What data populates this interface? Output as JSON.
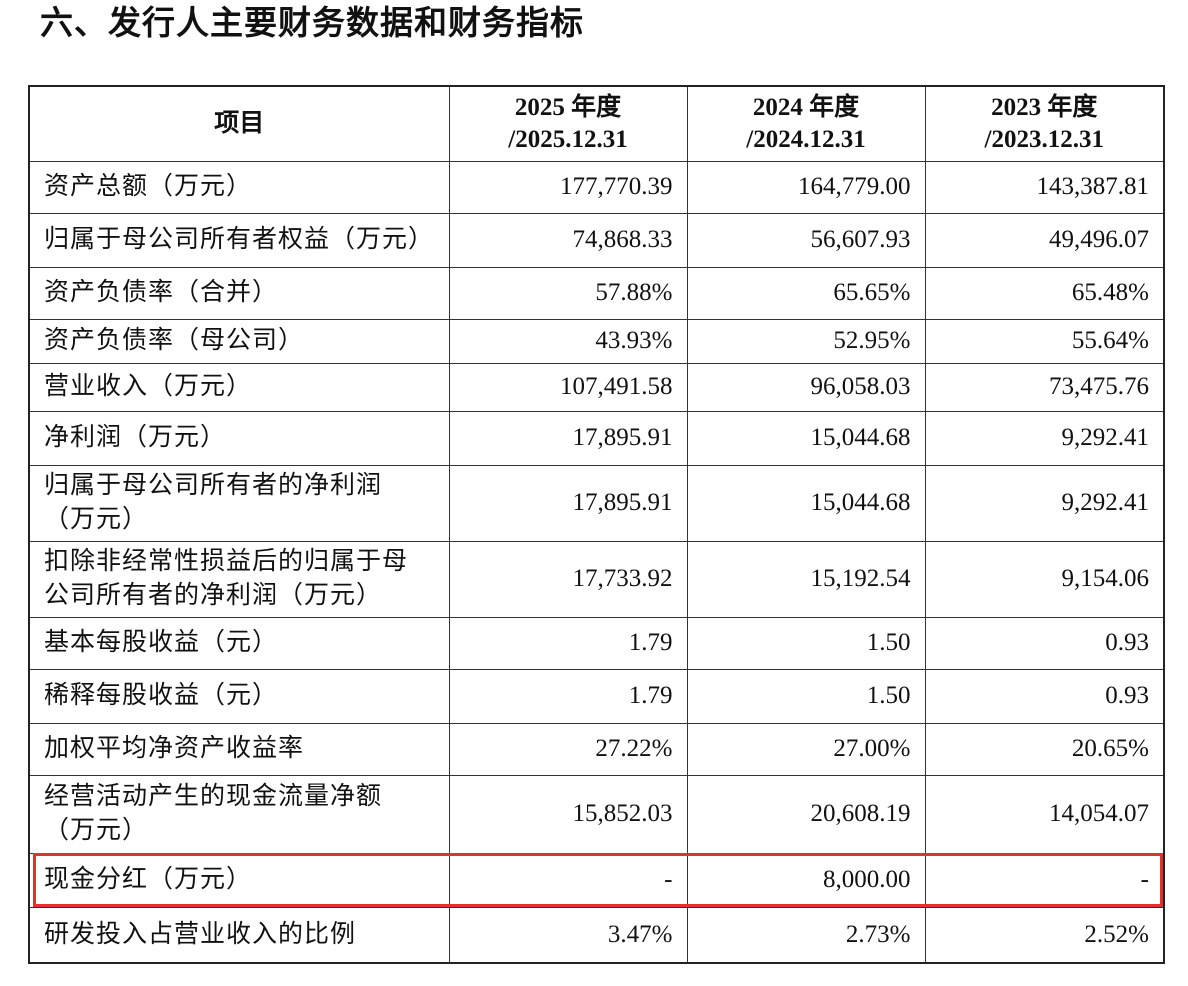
{
  "title": "六、发行人主要财务数据和财务指标",
  "table": {
    "header": [
      [
        "项目"
      ],
      [
        "2025 年度",
        "/2025.12.31"
      ],
      [
        "2024 年度",
        "/2024.12.31"
      ],
      [
        "2023 年度",
        "/2023.12.31"
      ]
    ],
    "rows": [
      [
        [
          "资产总额（万元）"
        ],
        "177,770.39",
        "164,779.00",
        "143,387.81"
      ],
      [
        [
          "归属于母公司所有者权益（万元）"
        ],
        "74,868.33",
        "56,607.93",
        "49,496.07"
      ],
      [
        [
          "资产负债率（合并）"
        ],
        "57.88%",
        "65.65%",
        "65.48%"
      ],
      [
        [
          "资产负债率（母公司）"
        ],
        "43.93%",
        "52.95%",
        "55.64%"
      ],
      [
        [
          "营业收入（万元）"
        ],
        "107,491.58",
        "96,058.03",
        "73,475.76"
      ],
      [
        [
          "净利润（万元）"
        ],
        "17,895.91",
        "15,044.68",
        "9,292.41"
      ],
      [
        [
          "归属于母公司所有者的净利润",
          "（万元）"
        ],
        "17,895.91",
        "15,044.68",
        "9,292.41"
      ],
      [
        [
          "扣除非经常性损益后的归属于母",
          "公司所有者的净利润（万元）"
        ],
        "17,733.92",
        "15,192.54",
        "9,154.06"
      ],
      [
        [
          "基本每股收益（元）"
        ],
        "1.79",
        "1.50",
        "0.93"
      ],
      [
        [
          "稀释每股收益（元）"
        ],
        "1.79",
        "1.50",
        "0.93"
      ],
      [
        [
          "加权平均净资产收益率"
        ],
        "27.22%",
        "27.00%",
        "20.65%"
      ],
      [
        [
          "经营活动产生的现金流量净额",
          "（万元）"
        ],
        "15,852.03",
        "20,608.19",
        "14,054.07"
      ],
      [
        [
          "现金分红（万元）"
        ],
        "-",
        "8,000.00",
        "-"
      ],
      [
        [
          "研发投入占营业收入的比例"
        ],
        "3.47%",
        "2.73%",
        "2.52%"
      ]
    ],
    "highlighted_row": 12
  }
}
